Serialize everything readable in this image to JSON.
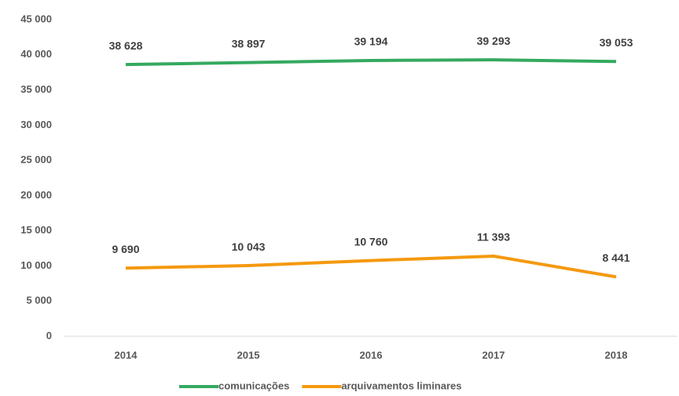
{
  "chart_data": {
    "type": "line",
    "categories": [
      "2014",
      "2015",
      "2016",
      "2017",
      "2018"
    ],
    "series": [
      {
        "name": "comunicações",
        "color": "#35a960",
        "values": [
          38628,
          38897,
          39194,
          39293,
          39053
        ],
        "value_labels": [
          "38 628",
          "38 897",
          "39 194",
          "39 293",
          "39 053"
        ]
      },
      {
        "name": "arquivamentos liminares",
        "color": "#f4990f",
        "values": [
          9690,
          10043,
          10760,
          11393,
          8441
        ],
        "value_labels": [
          "9 690",
          "10 043",
          "10 760",
          "11 393",
          "8 441"
        ]
      }
    ],
    "ylim": [
      0,
      45000
    ],
    "yticks": [
      0,
      {
        "value": 5000,
        "label": "5 000"
      },
      {
        "value": 10000,
        "label": "10 000"
      },
      {
        "value": 15000,
        "label": "15 000"
      },
      {
        "value": 20000,
        "label": "20 000"
      },
      {
        "value": 25000,
        "label": "25 000"
      },
      {
        "value": 30000,
        "label": "30 000"
      },
      {
        "value": 35000,
        "label": "35 000"
      },
      {
        "value": 40000,
        "label": "40 000"
      },
      {
        "value": 45000,
        "label": "45 000"
      }
    ],
    "grid": false,
    "legend": "bottom"
  }
}
